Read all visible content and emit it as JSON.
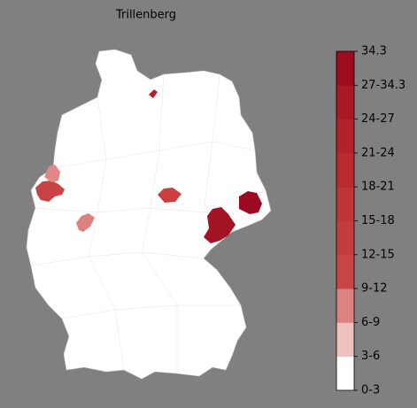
{
  "title": "Trillenberg",
  "colorbar": {
    "labels": [
      "0-3",
      "3-6",
      "6-9",
      "9-12",
      "12-15",
      "15-18",
      "18-21",
      "21-24",
      "24-27",
      "27-34.3",
      "34.3"
    ],
    "colors": [
      "#ffffff",
      "#efc0c0",
      "#dc8282",
      "#c94444",
      "#c43c3c",
      "#bf3434",
      "#b92a2e",
      "#b22228",
      "#aa1824",
      "#9e0a1e"
    ]
  }
}
